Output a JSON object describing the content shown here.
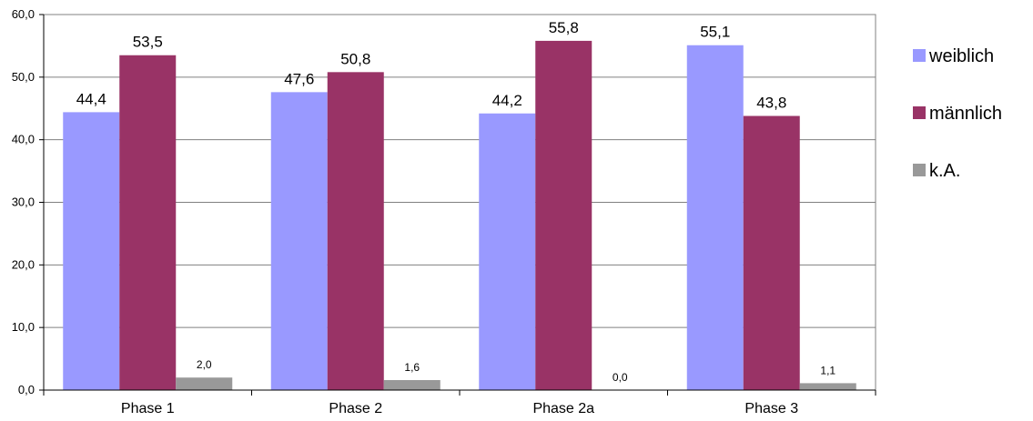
{
  "chart_data": {
    "type": "bar",
    "categories": [
      "Phase 1",
      "Phase 2",
      "Phase 2a",
      "Phase 3"
    ],
    "series": [
      {
        "name": "weiblich",
        "values": [
          44.4,
          47.6,
          44.2,
          55.1
        ],
        "labels": [
          "44,4",
          "47,6",
          "44,2",
          "55,1"
        ],
        "color": "#9999ff"
      },
      {
        "name": "männlich",
        "values": [
          53.5,
          50.8,
          55.8,
          43.8
        ],
        "labels": [
          "53,5",
          "50,8",
          "55,8",
          "43,8"
        ],
        "color": "#993366"
      },
      {
        "name": "k.A.",
        "values": [
          2.0,
          1.6,
          0.0,
          1.1
        ],
        "labels": [
          "2,0",
          "1,6",
          "0,0",
          "1,1"
        ],
        "color": "#999999"
      }
    ],
    "ylim": [
      0,
      60
    ],
    "yticks": [
      0,
      10,
      20,
      30,
      40,
      50,
      60
    ],
    "ytick_labels": [
      "0,0",
      "10,0",
      "20,0",
      "30,0",
      "40,0",
      "50,0",
      "60,0"
    ],
    "grid": true,
    "legend": "right",
    "title": "",
    "xlabel": "",
    "ylabel": ""
  }
}
